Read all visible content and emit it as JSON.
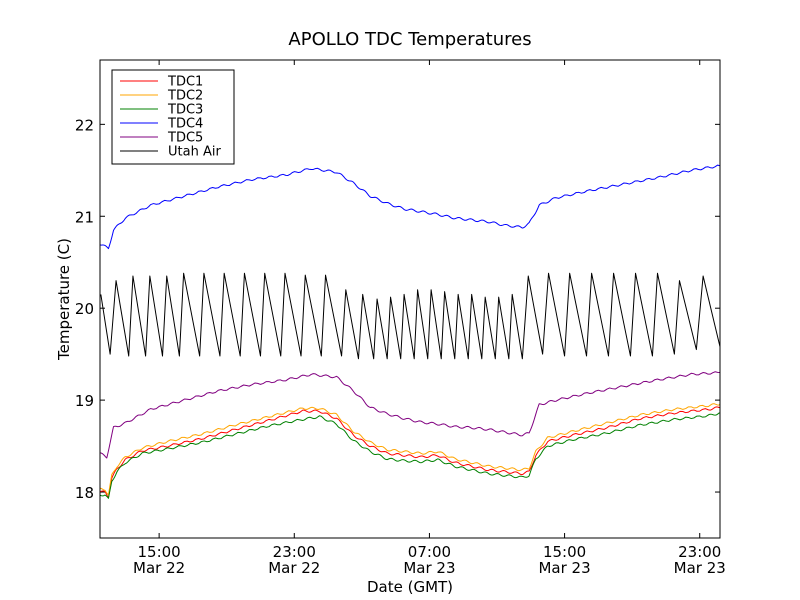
{
  "chart_data": {
    "type": "line",
    "title": "APOLLO TDC Temperatures",
    "xlabel": "Date (GMT)",
    "ylabel": "Temperature (C)",
    "ylim": [
      17.5,
      22.7
    ],
    "xlim_hours": [
      0,
      36.7
    ],
    "yticks": [
      {
        "value": 18,
        "label": "18"
      },
      {
        "value": 19,
        "label": "19"
      },
      {
        "value": 20,
        "label": "20"
      },
      {
        "value": 21,
        "label": "21"
      },
      {
        "value": 22,
        "label": "22"
      }
    ],
    "xticks": [
      {
        "hour": 3.5,
        "time": "15:00",
        "date": "Mar 22"
      },
      {
        "hour": 11.5,
        "time": "23:00",
        "date": "Mar 22"
      },
      {
        "hour": 19.5,
        "time": "07:00",
        "date": "Mar 23"
      },
      {
        "hour": 27.5,
        "time": "15:00",
        "date": "Mar 23"
      },
      {
        "hour": 35.5,
        "time": "23:00",
        "date": "Mar 23"
      }
    ],
    "legend_position": "top-left",
    "series": [
      {
        "name": "TDC1",
        "color": "#ff0000",
        "points": [
          [
            0,
            18.0
          ],
          [
            0.3,
            18.0
          ],
          [
            0.5,
            17.95
          ],
          [
            0.7,
            18.15
          ],
          [
            1,
            18.25
          ],
          [
            1.5,
            18.35
          ],
          [
            2.5,
            18.45
          ],
          [
            4,
            18.5
          ],
          [
            6,
            18.58
          ],
          [
            8,
            18.68
          ],
          [
            10,
            18.78
          ],
          [
            12,
            18.88
          ],
          [
            13,
            18.88
          ],
          [
            14,
            18.8
          ],
          [
            15,
            18.62
          ],
          [
            16,
            18.5
          ],
          [
            17,
            18.42
          ],
          [
            18,
            18.4
          ],
          [
            19,
            18.38
          ],
          [
            20,
            18.4
          ],
          [
            21,
            18.32
          ],
          [
            22,
            18.28
          ],
          [
            23,
            18.24
          ],
          [
            24,
            18.22
          ],
          [
            25,
            18.2
          ],
          [
            25.4,
            18.22
          ],
          [
            25.8,
            18.4
          ],
          [
            26.5,
            18.55
          ],
          [
            28,
            18.62
          ],
          [
            30,
            18.7
          ],
          [
            32,
            18.8
          ],
          [
            34,
            18.86
          ],
          [
            36,
            18.9
          ],
          [
            36.7,
            18.92
          ]
        ]
      },
      {
        "name": "TDC2",
        "color": "#ffa500",
        "points": [
          [
            0,
            18.03
          ],
          [
            0.3,
            18.03
          ],
          [
            0.5,
            17.97
          ],
          [
            0.7,
            18.18
          ],
          [
            1,
            18.28
          ],
          [
            1.5,
            18.38
          ],
          [
            2.5,
            18.48
          ],
          [
            4,
            18.55
          ],
          [
            6,
            18.63
          ],
          [
            8,
            18.73
          ],
          [
            10,
            18.82
          ],
          [
            12,
            18.91
          ],
          [
            13,
            18.91
          ],
          [
            14,
            18.84
          ],
          [
            15,
            18.66
          ],
          [
            16,
            18.54
          ],
          [
            17,
            18.46
          ],
          [
            18,
            18.44
          ],
          [
            19,
            18.42
          ],
          [
            20,
            18.44
          ],
          [
            21,
            18.36
          ],
          [
            22,
            18.32
          ],
          [
            23,
            18.28
          ],
          [
            24,
            18.26
          ],
          [
            25,
            18.24
          ],
          [
            25.4,
            18.26
          ],
          [
            25.8,
            18.44
          ],
          [
            26.5,
            18.59
          ],
          [
            28,
            18.66
          ],
          [
            30,
            18.75
          ],
          [
            32,
            18.84
          ],
          [
            34,
            18.9
          ],
          [
            36,
            18.94
          ],
          [
            36.7,
            18.96
          ]
        ]
      },
      {
        "name": "TDC3",
        "color": "#008000",
        "points": [
          [
            0,
            17.97
          ],
          [
            0.3,
            17.97
          ],
          [
            0.5,
            17.92
          ],
          [
            0.7,
            18.12
          ],
          [
            1,
            18.22
          ],
          [
            1.5,
            18.32
          ],
          [
            2.5,
            18.42
          ],
          [
            4,
            18.47
          ],
          [
            6,
            18.54
          ],
          [
            8,
            18.63
          ],
          [
            10,
            18.72
          ],
          [
            12,
            18.79
          ],
          [
            13,
            18.82
          ],
          [
            14,
            18.74
          ],
          [
            15,
            18.56
          ],
          [
            16,
            18.44
          ],
          [
            17,
            18.36
          ],
          [
            18,
            18.34
          ],
          [
            19,
            18.33
          ],
          [
            20,
            18.35
          ],
          [
            21,
            18.28
          ],
          [
            22,
            18.24
          ],
          [
            23,
            18.2
          ],
          [
            24,
            18.18
          ],
          [
            25,
            18.16
          ],
          [
            25.4,
            18.18
          ],
          [
            25.8,
            18.36
          ],
          [
            26.5,
            18.5
          ],
          [
            28,
            18.57
          ],
          [
            30,
            18.64
          ],
          [
            32,
            18.73
          ],
          [
            34,
            18.79
          ],
          [
            36,
            18.83
          ],
          [
            36.7,
            18.86
          ]
        ]
      },
      {
        "name": "TDC4",
        "color": "#0000ff",
        "points": [
          [
            0,
            20.7
          ],
          [
            0.5,
            20.65
          ],
          [
            0.8,
            20.85
          ],
          [
            1.5,
            20.98
          ],
          [
            3,
            21.12
          ],
          [
            5,
            21.22
          ],
          [
            7,
            21.32
          ],
          [
            9,
            21.4
          ],
          [
            11,
            21.45
          ],
          [
            12.5,
            21.52
          ],
          [
            14,
            21.48
          ],
          [
            15,
            21.36
          ],
          [
            16,
            21.22
          ],
          [
            17,
            21.14
          ],
          [
            18,
            21.08
          ],
          [
            19,
            21.05
          ],
          [
            20,
            21.02
          ],
          [
            21,
            20.98
          ],
          [
            22,
            20.96
          ],
          [
            23,
            20.94
          ],
          [
            24,
            20.9
          ],
          [
            25,
            20.88
          ],
          [
            25.4,
            20.92
          ],
          [
            26,
            21.12
          ],
          [
            27,
            21.2
          ],
          [
            29,
            21.28
          ],
          [
            31,
            21.35
          ],
          [
            33,
            21.42
          ],
          [
            35,
            21.5
          ],
          [
            36.7,
            21.55
          ]
        ]
      },
      {
        "name": "TDC5",
        "color": "#800080",
        "points": [
          [
            0,
            18.42
          ],
          [
            0.4,
            18.38
          ],
          [
            0.8,
            18.7
          ],
          [
            1.5,
            18.75
          ],
          [
            3,
            18.9
          ],
          [
            5,
            19.0
          ],
          [
            7,
            19.1
          ],
          [
            9,
            19.17
          ],
          [
            11,
            19.22
          ],
          [
            12.5,
            19.28
          ],
          [
            14,
            19.25
          ],
          [
            15,
            19.1
          ],
          [
            16,
            18.92
          ],
          [
            17,
            18.85
          ],
          [
            18,
            18.8
          ],
          [
            19,
            18.76
          ],
          [
            20,
            18.74
          ],
          [
            21,
            18.71
          ],
          [
            22,
            18.7
          ],
          [
            23,
            18.68
          ],
          [
            24,
            18.65
          ],
          [
            25,
            18.62
          ],
          [
            25.4,
            18.64
          ],
          [
            26,
            18.95
          ],
          [
            27,
            19.0
          ],
          [
            29,
            19.08
          ],
          [
            31,
            19.15
          ],
          [
            33,
            19.22
          ],
          [
            35,
            19.28
          ],
          [
            36.7,
            19.3
          ]
        ]
      },
      {
        "name": "Utah Air",
        "color": "#000000",
        "sawtooth": true,
        "points": [
          [
            0.05,
            20.15
          ],
          [
            0.6,
            19.5
          ],
          [
            0.95,
            20.3
          ],
          [
            1.7,
            19.48
          ],
          [
            1.95,
            20.35
          ],
          [
            2.7,
            19.48
          ],
          [
            2.95,
            20.35
          ],
          [
            3.7,
            19.48
          ],
          [
            3.95,
            20.35
          ],
          [
            4.7,
            19.48
          ],
          [
            4.95,
            20.38
          ],
          [
            5.9,
            19.48
          ],
          [
            6.15,
            20.38
          ],
          [
            7.1,
            19.48
          ],
          [
            7.35,
            20.38
          ],
          [
            8.3,
            19.48
          ],
          [
            8.55,
            20.38
          ],
          [
            9.5,
            19.48
          ],
          [
            9.75,
            20.38
          ],
          [
            10.7,
            19.48
          ],
          [
            10.95,
            20.38
          ],
          [
            11.9,
            19.48
          ],
          [
            12.15,
            20.36
          ],
          [
            13.1,
            19.48
          ],
          [
            13.35,
            20.36
          ],
          [
            14.3,
            19.48
          ],
          [
            14.55,
            20.2
          ],
          [
            15.3,
            19.45
          ],
          [
            15.55,
            20.15
          ],
          [
            16.2,
            19.45
          ],
          [
            16.4,
            20.1
          ],
          [
            17.0,
            19.45
          ],
          [
            17.2,
            20.12
          ],
          [
            17.8,
            19.45
          ],
          [
            18.0,
            20.15
          ],
          [
            18.6,
            19.45
          ],
          [
            18.8,
            20.2
          ],
          [
            19.4,
            19.45
          ],
          [
            19.6,
            20.2
          ],
          [
            20.2,
            19.45
          ],
          [
            20.4,
            20.18
          ],
          [
            21.0,
            19.45
          ],
          [
            21.2,
            20.15
          ],
          [
            21.8,
            19.45
          ],
          [
            22.0,
            20.15
          ],
          [
            22.6,
            19.45
          ],
          [
            22.8,
            20.12
          ],
          [
            23.4,
            19.45
          ],
          [
            23.6,
            20.12
          ],
          [
            24.2,
            19.45
          ],
          [
            24.4,
            20.15
          ],
          [
            25.0,
            19.45
          ],
          [
            25.35,
            20.35
          ],
          [
            26.2,
            19.5
          ],
          [
            26.55,
            20.38
          ],
          [
            27.5,
            19.48
          ],
          [
            27.8,
            20.38
          ],
          [
            28.8,
            19.48
          ],
          [
            29.1,
            20.38
          ],
          [
            30.1,
            19.48
          ],
          [
            30.4,
            20.38
          ],
          [
            31.4,
            19.48
          ],
          [
            31.7,
            20.38
          ],
          [
            32.7,
            19.48
          ],
          [
            33.0,
            20.38
          ],
          [
            34.0,
            19.5
          ],
          [
            34.3,
            20.3
          ],
          [
            35.3,
            19.55
          ],
          [
            35.7,
            20.35
          ],
          [
            36.7,
            19.58
          ]
        ]
      }
    ]
  }
}
